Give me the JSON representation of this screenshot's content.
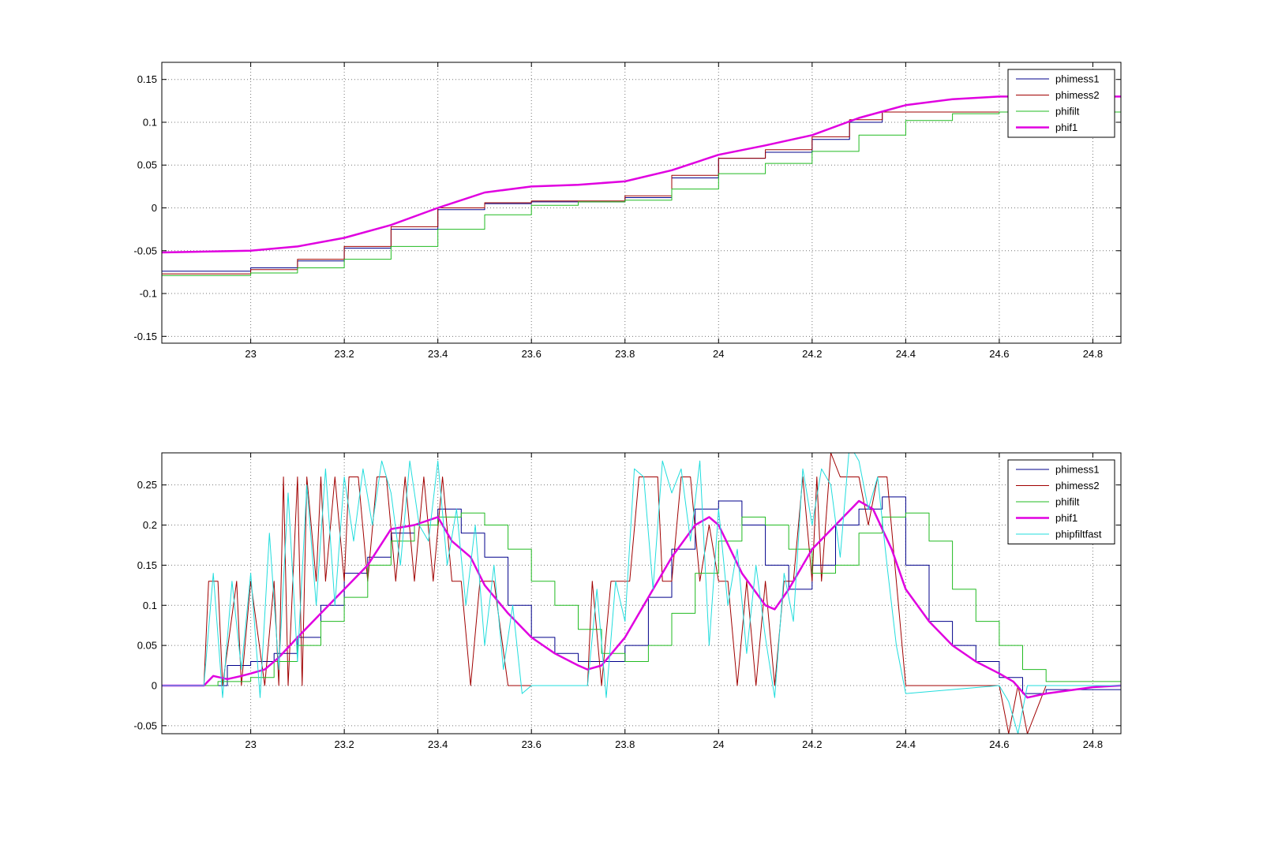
{
  "figure": {
    "background": "#ffffff"
  },
  "colors": {
    "phimess1": "#00008b",
    "phimess2": "#a00000",
    "phifilt": "#22bb22",
    "phif1": "#e000e0",
    "phipfiltfast": "#22dddd"
  },
  "chart_data": [
    {
      "type": "line",
      "title": "",
      "xlabel": "",
      "ylabel": "",
      "xlim": [
        22.81,
        24.86
      ],
      "ylim": [
        -0.158,
        0.17
      ],
      "grid": true,
      "legend_position": "top-right",
      "xticks": [
        23,
        23.2,
        23.4,
        23.6,
        23.8,
        24,
        24.2,
        24.4,
        24.6,
        24.8
      ],
      "xtick_labels": [
        "23",
        "23.2",
        "23.4",
        "23.6",
        "23.8",
        "24",
        "24.2",
        "24.4",
        "24.6",
        "24.8"
      ],
      "yticks": [
        -0.15,
        -0.1,
        -0.05,
        0,
        0.05,
        0.1,
        0.15
      ],
      "ytick_labels": [
        "-0.15",
        "-0.1",
        "-0.05",
        "0",
        "0.05",
        "0.1",
        "0.15"
      ],
      "series": [
        {
          "name": "phimess1",
          "color": "#00008b",
          "stroke_width": 1,
          "step": true,
          "x": [
            22.81,
            22.93,
            23.0,
            23.1,
            23.2,
            23.3,
            23.4,
            23.5,
            23.6,
            23.8,
            23.9,
            24.0,
            24.1,
            24.2,
            24.28,
            24.35,
            24.5,
            24.86
          ],
          "y": [
            -0.074,
            -0.074,
            -0.07,
            -0.062,
            -0.047,
            -0.025,
            -0.002,
            0.005,
            0.007,
            0.012,
            0.035,
            0.058,
            0.065,
            0.08,
            0.1,
            0.112,
            0.112,
            0.112
          ]
        },
        {
          "name": "phimess2",
          "color": "#a00000",
          "stroke_width": 1,
          "step": true,
          "x": [
            22.81,
            22.9,
            23.0,
            23.1,
            23.2,
            23.3,
            23.4,
            23.5,
            23.6,
            23.8,
            23.9,
            24.0,
            24.1,
            24.2,
            24.28,
            24.35,
            24.5,
            24.86
          ],
          "y": [
            -0.077,
            -0.077,
            -0.072,
            -0.06,
            -0.045,
            -0.022,
            0.0,
            0.006,
            0.008,
            0.014,
            0.038,
            0.058,
            0.068,
            0.083,
            0.103,
            0.112,
            0.112,
            0.112
          ]
        },
        {
          "name": "phifilt",
          "color": "#22bb22",
          "stroke_width": 1,
          "step": true,
          "x": [
            22.81,
            22.93,
            23.0,
            23.1,
            23.2,
            23.3,
            23.4,
            23.5,
            23.6,
            23.7,
            23.8,
            23.9,
            24.0,
            24.1,
            24.2,
            24.3,
            24.4,
            24.5,
            24.6,
            24.86
          ],
          "y": [
            -0.079,
            -0.079,
            -0.076,
            -0.07,
            -0.06,
            -0.045,
            -0.025,
            -0.008,
            0.003,
            0.007,
            0.009,
            0.022,
            0.04,
            0.052,
            0.066,
            0.085,
            0.102,
            0.11,
            0.112,
            0.112
          ]
        },
        {
          "name": "phif1",
          "color": "#e000e0",
          "stroke_width": 2.5,
          "step": false,
          "x": [
            22.81,
            23.0,
            23.1,
            23.2,
            23.3,
            23.4,
            23.5,
            23.6,
            23.7,
            23.8,
            23.9,
            24.0,
            24.1,
            24.2,
            24.3,
            24.4,
            24.5,
            24.6,
            24.7,
            24.86
          ],
          "y": [
            -0.052,
            -0.05,
            -0.045,
            -0.035,
            -0.02,
            0.0,
            0.018,
            0.025,
            0.027,
            0.031,
            0.044,
            0.062,
            0.073,
            0.085,
            0.105,
            0.12,
            0.127,
            0.13,
            0.13,
            0.13
          ]
        }
      ]
    },
    {
      "type": "line",
      "title": "",
      "xlabel": "",
      "ylabel": "",
      "xlim": [
        22.81,
        24.86
      ],
      "ylim": [
        -0.06,
        0.29
      ],
      "grid": true,
      "legend_position": "top-right",
      "xticks": [
        23,
        23.2,
        23.4,
        23.6,
        23.8,
        24,
        24.2,
        24.4,
        24.6,
        24.8
      ],
      "xtick_labels": [
        "23",
        "23.2",
        "23.4",
        "23.6",
        "23.8",
        "24",
        "24.2",
        "24.4",
        "24.6",
        "24.8"
      ],
      "yticks": [
        -0.05,
        0,
        0.05,
        0.1,
        0.15,
        0.2,
        0.25
      ],
      "ytick_labels": [
        "-0.05",
        "0",
        "0.05",
        "0.1",
        "0.15",
        "0.2",
        "0.25"
      ],
      "series": [
        {
          "name": "phimess1",
          "color": "#00008b",
          "stroke_width": 1,
          "step": true,
          "x": [
            22.81,
            22.9,
            22.95,
            23.0,
            23.05,
            23.1,
            23.15,
            23.2,
            23.25,
            23.3,
            23.35,
            23.4,
            23.45,
            23.5,
            23.55,
            23.6,
            23.65,
            23.7,
            23.75,
            23.8,
            23.85,
            23.9,
            23.95,
            24.0,
            24.05,
            24.1,
            24.15,
            24.2,
            24.25,
            24.3,
            24.35,
            24.4,
            24.45,
            24.5,
            24.55,
            24.6,
            24.65,
            24.7,
            24.86
          ],
          "y": [
            0,
            0,
            0.025,
            0.03,
            0.04,
            0.06,
            0.1,
            0.14,
            0.16,
            0.19,
            0.2,
            0.22,
            0.19,
            0.16,
            0.1,
            0.06,
            0.04,
            0.03,
            0.03,
            0.05,
            0.11,
            0.17,
            0.22,
            0.23,
            0.2,
            0.15,
            0.12,
            0.15,
            0.2,
            0.22,
            0.235,
            0.15,
            0.08,
            0.05,
            0.03,
            0.01,
            -0.01,
            -0.005,
            0
          ]
        },
        {
          "name": "phimess2",
          "color": "#a00000",
          "stroke_width": 1,
          "step": false,
          "x": [
            22.81,
            22.9,
            22.91,
            22.93,
            22.94,
            22.97,
            22.98,
            23.0,
            23.03,
            23.05,
            23.06,
            23.07,
            23.08,
            23.1,
            23.11,
            23.12,
            23.14,
            23.15,
            23.16,
            23.18,
            23.2,
            23.21,
            23.23,
            23.25,
            23.27,
            23.29,
            23.31,
            23.33,
            23.35,
            23.37,
            23.39,
            23.41,
            23.43,
            23.45,
            23.47,
            23.49,
            23.51,
            23.52,
            23.55,
            23.56,
            23.58,
            23.6,
            23.72,
            23.73,
            23.75,
            23.77,
            23.79,
            23.81,
            23.83,
            23.85,
            23.87,
            23.88,
            23.9,
            23.92,
            23.94,
            23.96,
            23.98,
            24.0,
            24.02,
            24.04,
            24.06,
            24.08,
            24.1,
            24.12,
            24.14,
            24.16,
            24.18,
            24.2,
            24.21,
            24.22,
            24.24,
            24.26,
            24.28,
            24.3,
            24.32,
            24.34,
            24.36,
            24.38,
            24.4,
            24.6,
            24.62,
            24.64,
            24.66,
            24.7,
            24.86
          ],
          "y": [
            0,
            0,
            0.13,
            0.13,
            0,
            0.13,
            0,
            0.13,
            0,
            0.13,
            0,
            0.26,
            0,
            0.26,
            0,
            0.26,
            0.13,
            0.26,
            0.13,
            0.26,
            0.13,
            0.26,
            0.26,
            0.13,
            0.26,
            0.26,
            0.13,
            0.26,
            0.13,
            0.26,
            0.13,
            0.26,
            0.13,
            0.13,
            0,
            0.13,
            0.13,
            0.13,
            0,
            0,
            0,
            0,
            0,
            0.13,
            0,
            0.13,
            0.13,
            0.13,
            0.26,
            0.26,
            0.26,
            0.13,
            0.13,
            0.26,
            0.26,
            0.13,
            0.2,
            0.13,
            0.13,
            0,
            0.13,
            0,
            0.13,
            0,
            0.13,
            0.13,
            0.26,
            0.13,
            0.26,
            0.13,
            0.29,
            0.26,
            0.26,
            0.26,
            0.2,
            0.26,
            0.26,
            0.13,
            0,
            0,
            -0.06,
            0,
            -0.06,
            0,
            0
          ]
        },
        {
          "name": "phifilt",
          "color": "#22bb22",
          "stroke_width": 1,
          "step": true,
          "x": [
            22.81,
            22.93,
            23.0,
            23.05,
            23.1,
            23.15,
            23.2,
            23.25,
            23.3,
            23.35,
            23.4,
            23.45,
            23.5,
            23.55,
            23.6,
            23.65,
            23.7,
            23.75,
            23.8,
            23.85,
            23.9,
            23.95,
            24.0,
            24.05,
            24.1,
            24.15,
            24.2,
            24.25,
            24.3,
            24.35,
            24.4,
            24.45,
            24.5,
            24.55,
            24.6,
            24.65,
            24.7,
            24.86
          ],
          "y": [
            0,
            0.005,
            0.01,
            0.03,
            0.05,
            0.08,
            0.11,
            0.15,
            0.18,
            0.2,
            0.21,
            0.215,
            0.2,
            0.17,
            0.13,
            0.1,
            0.07,
            0.04,
            0.03,
            0.05,
            0.09,
            0.14,
            0.18,
            0.21,
            0.2,
            0.17,
            0.14,
            0.15,
            0.19,
            0.21,
            0.215,
            0.18,
            0.12,
            0.08,
            0.05,
            0.02,
            0.005,
            0
          ]
        },
        {
          "name": "phif1",
          "color": "#e000e0",
          "stroke_width": 2.5,
          "step": false,
          "x": [
            22.81,
            22.9,
            22.92,
            22.95,
            22.98,
            23.0,
            23.03,
            23.06,
            23.1,
            23.15,
            23.2,
            23.25,
            23.3,
            23.35,
            23.4,
            23.43,
            23.47,
            23.5,
            23.55,
            23.6,
            23.65,
            23.7,
            23.72,
            23.75,
            23.8,
            23.85,
            23.9,
            23.95,
            23.98,
            24.0,
            24.05,
            24.1,
            24.12,
            24.15,
            24.2,
            24.25,
            24.3,
            24.33,
            24.37,
            24.4,
            24.45,
            24.5,
            24.55,
            24.6,
            24.63,
            24.66,
            24.7,
            24.8,
            24.86
          ],
          "y": [
            0,
            0,
            0.012,
            0.008,
            0.012,
            0.015,
            0.02,
            0.035,
            0.06,
            0.09,
            0.12,
            0.15,
            0.195,
            0.2,
            0.21,
            0.18,
            0.16,
            0.125,
            0.09,
            0.06,
            0.04,
            0.025,
            0.02,
            0.025,
            0.06,
            0.11,
            0.16,
            0.2,
            0.21,
            0.2,
            0.14,
            0.1,
            0.095,
            0.12,
            0.17,
            0.2,
            0.23,
            0.22,
            0.17,
            0.12,
            0.08,
            0.05,
            0.03,
            0.015,
            0.005,
            -0.015,
            -0.01,
            -0.002,
            0
          ]
        },
        {
          "name": "phipfiltfast",
          "color": "#22dddd",
          "stroke_width": 1,
          "step": false,
          "x": [
            22.81,
            22.9,
            22.92,
            22.94,
            22.96,
            22.98,
            23.0,
            23.02,
            23.04,
            23.06,
            23.08,
            23.1,
            23.12,
            23.14,
            23.16,
            23.18,
            23.2,
            23.22,
            23.24,
            23.26,
            23.28,
            23.3,
            23.32,
            23.34,
            23.36,
            23.38,
            23.4,
            23.42,
            23.44,
            23.46,
            23.48,
            23.5,
            23.52,
            23.54,
            23.56,
            23.58,
            23.6,
            23.72,
            23.74,
            23.76,
            23.78,
            23.8,
            23.82,
            23.84,
            23.86,
            23.88,
            23.9,
            23.92,
            23.94,
            23.96,
            23.98,
            24.0,
            24.02,
            24.04,
            24.06,
            24.08,
            24.1,
            24.12,
            24.14,
            24.16,
            24.18,
            24.2,
            24.22,
            24.24,
            24.26,
            24.28,
            24.3,
            24.32,
            24.34,
            24.36,
            24.38,
            24.4,
            24.6,
            24.62,
            24.64,
            24.66,
            24.7,
            24.86
          ],
          "y": [
            0,
            0,
            0.14,
            -0.015,
            0.13,
            0.02,
            0.14,
            -0.015,
            0.19,
            0.02,
            0.24,
            0.03,
            0.25,
            0.1,
            0.27,
            0.1,
            0.26,
            0.18,
            0.27,
            0.2,
            0.28,
            0.24,
            0.15,
            0.28,
            0.2,
            0.18,
            0.28,
            0.15,
            0.22,
            0.1,
            0.2,
            0.05,
            0.15,
            0.02,
            0.1,
            -0.01,
            0,
            0,
            0.12,
            -0.015,
            0.13,
            0.08,
            0.27,
            0.26,
            0.12,
            0.28,
            0.24,
            0.27,
            0.18,
            0.28,
            0.05,
            0.22,
            0.1,
            0.17,
            0.04,
            0.15,
            0.06,
            -0.015,
            0.14,
            0.08,
            0.27,
            0.2,
            0.27,
            0.25,
            0.16,
            0.3,
            0.28,
            0.22,
            0.26,
            0.15,
            0.05,
            -0.01,
            0,
            -0.02,
            -0.06,
            0,
            0,
            0
          ]
        }
      ]
    }
  ]
}
